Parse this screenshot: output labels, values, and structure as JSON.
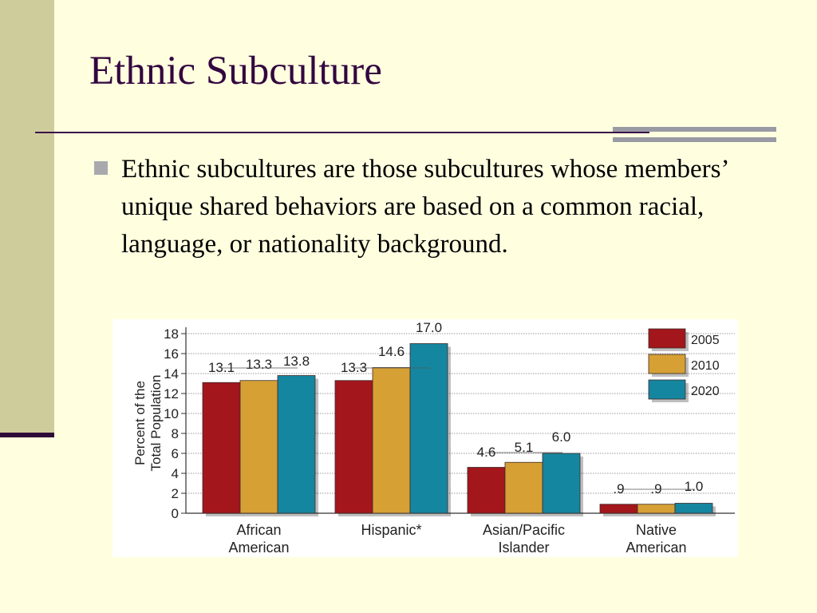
{
  "slide": {
    "title": "Ethnic Subculture",
    "bullet_text": "Ethnic subcultures are those subcultures whose members’ unique shared behaviors are based on a common racial, language, or nationality background."
  },
  "colors": {
    "background": "#FFFFE0",
    "title": "#33063F",
    "band": "#CFCC9C"
  },
  "chart_data": {
    "type": "bar",
    "title": "",
    "xlabel": "",
    "ylabel": "Percent of the Total Population",
    "ylim": [
      0,
      18
    ],
    "yticks": [
      0,
      2,
      4,
      6,
      8,
      10,
      12,
      14,
      16,
      18
    ],
    "grid": true,
    "legend_position": "top-right",
    "categories": [
      "African American",
      "Hispanic*",
      "Asian/Pacific Islander",
      "Native American"
    ],
    "series": [
      {
        "name": "2005",
        "color": "#A3161B",
        "values": [
          13.1,
          13.3,
          4.6,
          0.9
        ],
        "labels": [
          "13.1",
          "13.3",
          "4.6",
          ".9"
        ]
      },
      {
        "name": "2010",
        "color": "#D6A034",
        "values": [
          13.3,
          14.6,
          5.1,
          0.9
        ],
        "labels": [
          "13.3",
          "14.6",
          "5.1",
          ".9"
        ]
      },
      {
        "name": "2020",
        "color": "#15869F",
        "values": [
          13.8,
          17.0,
          6.0,
          1.0
        ],
        "labels": [
          "13.8",
          "17.0",
          "6.0",
          "1.0"
        ]
      }
    ]
  }
}
